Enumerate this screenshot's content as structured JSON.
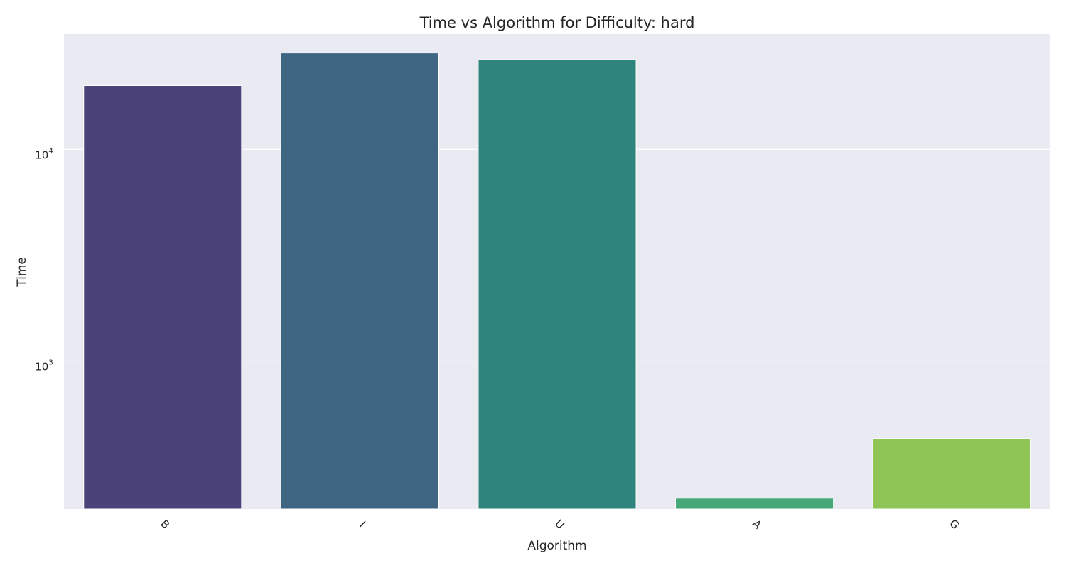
{
  "chart_data": {
    "type": "bar",
    "title": "Time vs Algorithm for Difficulty: hard",
    "xlabel": "Algorithm",
    "ylabel": "Time",
    "categories": [
      "B",
      "I",
      "U",
      "A",
      "G"
    ],
    "values": [
      20000,
      28500,
      26500,
      225,
      430
    ],
    "colors": [
      "#4a4279",
      "#3e6682",
      "#2f847d",
      "#46a777",
      "#8fc556"
    ],
    "yscale": "log",
    "ylim": [
      200,
      35000
    ],
    "yticks": [
      {
        "value": 1000,
        "base": "10",
        "exp": "3"
      },
      {
        "value": 10000,
        "base": "10",
        "exp": "4"
      }
    ],
    "xtick_rotation": 45,
    "grid": true,
    "plot_background": "#eaeaf2",
    "grid_color": "#ffffff",
    "legend": "none"
  }
}
